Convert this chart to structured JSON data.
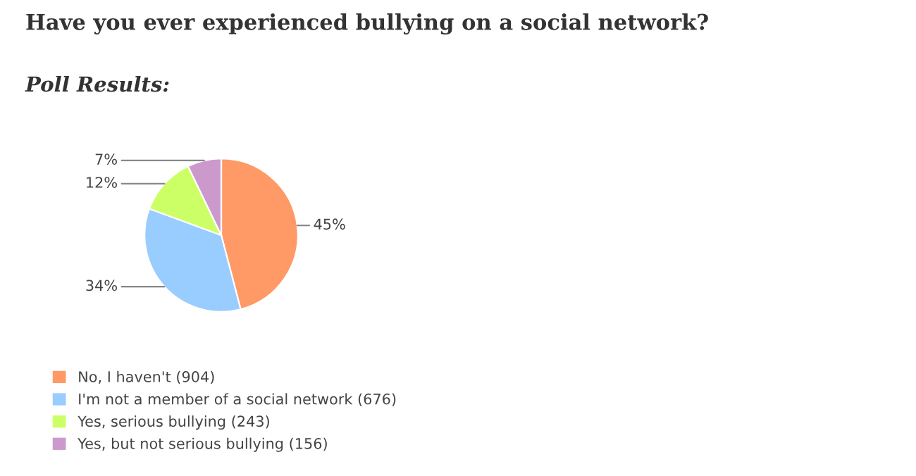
{
  "chart_data": {
    "type": "pie",
    "title": "Have you ever experienced bullying on a social network?",
    "subtitle": "Poll Results:",
    "categories": [
      "No, I haven't (904)",
      "I'm not a member of a social network (676)",
      "Yes, serious bullying (243)",
      "Yes, but not serious bullying (156)"
    ],
    "values": [
      45,
      34,
      12,
      7
    ],
    "value_labels": [
      "45%",
      "34%",
      "12%",
      "7%"
    ],
    "colors": [
      "#ff9966",
      "#99ccff",
      "#ccff66",
      "#cc99cc"
    ],
    "legend": "bottom left"
  }
}
